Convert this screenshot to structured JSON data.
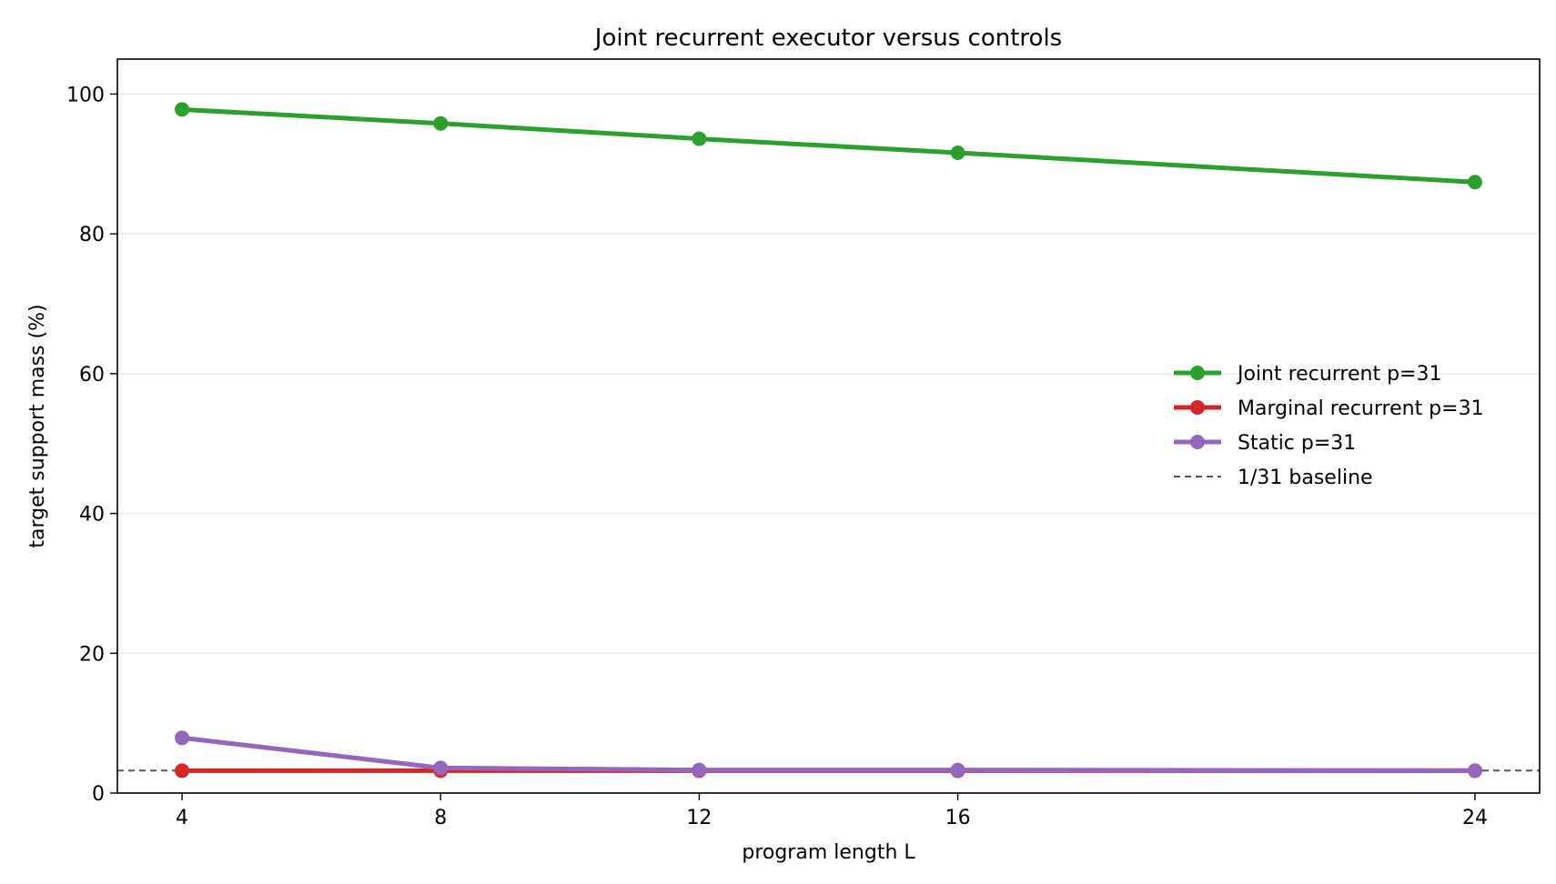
{
  "chart_data": {
    "type": "line",
    "title": "Joint recurrent executor versus controls",
    "xlabel": "program length L",
    "ylabel": "target support mass (%)",
    "x": [
      4,
      8,
      12,
      16,
      24
    ],
    "xticks": [
      4,
      8,
      12,
      16,
      24
    ],
    "yticks": [
      0,
      20,
      40,
      60,
      80,
      100
    ],
    "xlim": [
      3,
      25
    ],
    "ylim": [
      0,
      105
    ],
    "grid": "horizontal",
    "legend_position": "center-right",
    "series": [
      {
        "name": "Joint recurrent p=31",
        "values": [
          97.8,
          95.8,
          93.6,
          91.6,
          87.4
        ],
        "color": "#2ca02c"
      },
      {
        "name": "Marginal recurrent p=31",
        "values": [
          3.2,
          3.2,
          3.2,
          3.2,
          3.2
        ],
        "color": "#d62728"
      },
      {
        "name": "Static p=31",
        "values": [
          7.9,
          3.6,
          3.3,
          3.3,
          3.2
        ],
        "color": "#9467bd"
      }
    ],
    "baseline": {
      "name": "1/31 baseline",
      "value": 3.226,
      "color": "#555555"
    }
  }
}
